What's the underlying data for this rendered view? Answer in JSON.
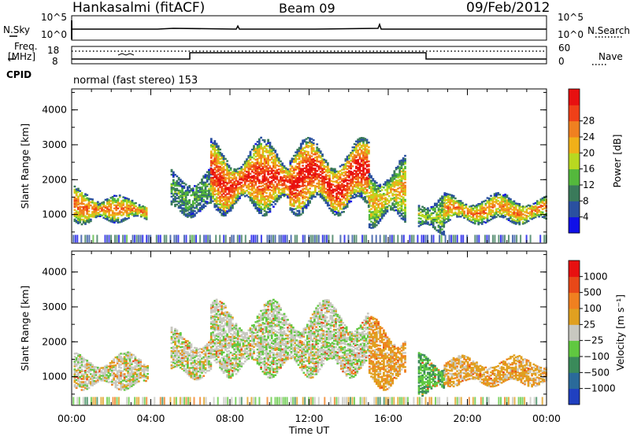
{
  "header": {
    "station": "Hankasalmi (fitACF)",
    "beam": "Beam 09",
    "date": "09/Feb/2012"
  },
  "strip_labels": {
    "nsky": "N.Sky",
    "nsearch": "N.Search",
    "freq_line1": "Freq.",
    "freq_line2": "[MHz]",
    "nave": "Nave",
    "cpid": "CPID",
    "cpid_value": "normal (fast stereo) 153",
    "noise_hi_left": "10^5",
    "noise_lo_left": "10^0",
    "noise_hi_right": "10^5",
    "noise_lo_right": "10^0",
    "freq_hi": "18",
    "freq_lo": "8",
    "nave_hi": "60",
    "nave_lo": "0"
  },
  "colors": {
    "power_scale": [
      "#1010e8",
      "#2a50a0",
      "#3a7a5a",
      "#54b83c",
      "#b8d820",
      "#f0b018",
      "#f08020",
      "#f04018",
      "#e81010"
    ],
    "velocity_scale": [
      "#2040c0",
      "#2a6a9a",
      "#3a8a5a",
      "#60c840",
      "#c8c8c0",
      "#e0a020",
      "#f08020",
      "#e84818",
      "#e81010"
    ]
  },
  "chart_data": [
    {
      "type": "heatmap",
      "title": "",
      "xlabel": "",
      "ylabel": "Slant Range [km]",
      "x_ticks": [
        "00:00",
        "04:00",
        "08:00",
        "12:00",
        "16:00",
        "20:00",
        "00:00"
      ],
      "xlim": [
        0,
        24
      ],
      "y_ticks": [
        "1000",
        "2000",
        "3000",
        "4000"
      ],
      "ylim": [
        180,
        4600
      ],
      "colorbar": {
        "label": "Power [dB]",
        "range": [
          0,
          32
        ],
        "tick_labels": [
          "4",
          "8",
          "12",
          "16",
          "20",
          "24",
          "28"
        ]
      },
      "echo_regions": [
        {
          "t": [
            0.1,
            1.3
          ],
          "r": [
            700,
            1800
          ],
          "level": 0.75
        },
        {
          "t": [
            1.3,
            3.8
          ],
          "r": [
            750,
            1550
          ],
          "level": 0.7
        },
        {
          "t": [
            5.0,
            7.0
          ],
          "r": [
            900,
            2400
          ],
          "level": 0.35
        },
        {
          "t": [
            7.0,
            11.0
          ],
          "r": [
            950,
            3200
          ],
          "level": 0.85
        },
        {
          "t": [
            11.0,
            15.0
          ],
          "r": [
            950,
            3200
          ],
          "level": 0.9
        },
        {
          "t": [
            15.0,
            16.8
          ],
          "r": [
            600,
            2700
          ],
          "level": 0.6
        },
        {
          "t": [
            17.5,
            18.8
          ],
          "r": [
            400,
            1700
          ],
          "level": 0.45
        },
        {
          "t": [
            18.8,
            24.0
          ],
          "r": [
            700,
            1600
          ],
          "level": 0.7
        }
      ]
    },
    {
      "type": "heatmap",
      "title": "",
      "xlabel": "Time UT",
      "ylabel": "Slant Range [km]",
      "x_ticks": [
        "00:00",
        "04:00",
        "08:00",
        "12:00",
        "16:00",
        "20:00",
        "00:00"
      ],
      "xlim": [
        0,
        24
      ],
      "y_ticks": [
        "1000",
        "2000",
        "3000",
        "4000"
      ],
      "ylim": [
        180,
        4600
      ],
      "colorbar": {
        "label": "Velocity [m s⁻¹]",
        "range": [
          -1000,
          1000
        ],
        "tick_labels": [
          "1000",
          "500",
          "100",
          "25",
          "−25",
          "−100",
          "−500",
          "−1000"
        ]
      },
      "echo_regions": [
        {
          "t": [
            0.1,
            3.8
          ],
          "r": [
            600,
            1700
          ],
          "level": 0.5
        },
        {
          "t": [
            5.0,
            7.0
          ],
          "r": [
            900,
            2400
          ],
          "level": 0.5
        },
        {
          "t": [
            7.0,
            15.0
          ],
          "r": [
            950,
            3200
          ],
          "level": 0.48
        },
        {
          "t": [
            15.0,
            16.8
          ],
          "r": [
            600,
            2700
          ],
          "level": 0.62
        },
        {
          "t": [
            17.5,
            18.8
          ],
          "r": [
            400,
            1700
          ],
          "level": 0.35
        },
        {
          "t": [
            18.8,
            24.0
          ],
          "r": [
            700,
            1600
          ],
          "level": 0.6
        }
      ]
    }
  ]
}
